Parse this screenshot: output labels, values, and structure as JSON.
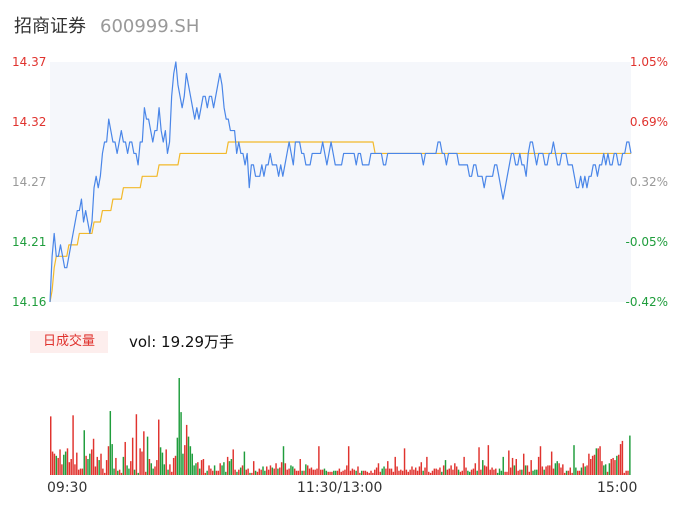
{
  "header": {
    "name": "招商证券",
    "code": "600999.SH"
  },
  "colors": {
    "up": "#e0332e",
    "down": "#1f9d3c",
    "neutral": "#999999",
    "price_line": "#4a86e8",
    "avg_line": "#f2b92b",
    "area": "#f5f7fb"
  },
  "volume": {
    "badge": "日成交量",
    "label": "vol: 19.29万手"
  },
  "chart_data": {
    "type": "line",
    "x_ticks": [
      "09:30",
      "11:30/13:00",
      "15:00"
    ],
    "y_left_ticks": [
      "14.37",
      "14.32",
      "14.27",
      "14.21",
      "14.16"
    ],
    "y_right_ticks": [
      "1.05%",
      "0.69%",
      "0.32%",
      "-0.05%",
      "-0.42%"
    ],
    "ylim": [
      14.16,
      14.37
    ],
    "price_series": [
      14.16,
      14.2,
      14.22,
      14.2,
      14.2,
      14.21,
      14.2,
      14.19,
      14.19,
      14.2,
      14.21,
      14.22,
      14.23,
      14.24,
      14.24,
      14.25,
      14.23,
      14.24,
      14.23,
      14.22,
      14.23,
      14.26,
      14.27,
      14.26,
      14.27,
      14.29,
      14.3,
      14.3,
      14.32,
      14.31,
      14.3,
      14.3,
      14.29,
      14.3,
      14.31,
      14.3,
      14.3,
      14.29,
      14.3,
      14.3,
      14.29,
      14.29,
      14.28,
      14.3,
      14.3,
      14.33,
      14.32,
      14.32,
      14.31,
      14.3,
      14.31,
      14.31,
      14.33,
      14.31,
      14.3,
      14.31,
      14.29,
      14.3,
      14.34,
      14.36,
      14.37,
      14.35,
      14.34,
      14.33,
      14.34,
      14.36,
      14.35,
      14.34,
      14.33,
      14.32,
      14.33,
      14.32,
      14.33,
      14.34,
      14.34,
      14.33,
      14.34,
      14.34,
      14.33,
      14.34,
      14.35,
      14.36,
      14.35,
      14.33,
      14.32,
      14.32,
      14.31,
      14.31,
      14.31,
      14.29,
      14.3,
      14.29,
      14.29,
      14.28,
      14.29,
      14.26,
      14.28,
      14.28,
      14.27,
      14.27,
      14.27,
      14.28,
      14.27,
      14.28,
      14.28,
      14.29,
      14.28,
      14.28,
      14.28,
      14.27,
      14.28,
      14.27,
      14.28,
      14.29,
      14.3,
      14.29,
      14.28,
      14.3,
      14.3,
      14.3,
      14.29,
      14.29,
      14.28,
      14.28,
      14.28,
      14.29,
      14.29,
      14.29,
      14.29,
      14.29,
      14.3,
      14.29,
      14.28,
      14.29,
      14.3,
      14.29,
      14.28,
      14.28,
      14.28,
      14.28,
      14.29,
      14.29,
      14.29,
      14.29,
      14.29,
      14.29,
      14.28,
      14.29,
      14.29,
      14.28,
      14.28,
      14.28,
      14.28,
      14.29,
      14.29,
      14.29,
      14.29,
      14.29,
      14.29,
      14.28,
      14.28,
      14.29,
      14.29,
      14.29,
      14.29,
      14.29,
      14.29,
      14.29,
      14.29,
      14.29,
      14.29,
      14.29,
      14.29,
      14.29,
      14.29,
      14.29,
      14.29,
      14.29,
      14.28,
      14.29,
      14.29,
      14.29,
      14.29,
      14.29,
      14.29,
      14.3,
      14.3,
      14.29,
      14.29,
      14.28,
      14.29,
      14.29,
      14.29,
      14.29,
      14.29,
      14.28,
      14.28,
      14.28,
      14.28,
      14.28,
      14.27,
      14.27,
      14.28,
      14.28,
      14.27,
      14.27,
      14.27,
      14.26,
      14.27,
      14.27,
      14.27,
      14.27,
      14.28,
      14.28,
      14.27,
      14.26,
      14.25,
      14.26,
      14.27,
      14.28,
      14.29,
      14.29,
      14.28,
      14.28,
      14.29,
      14.28,
      14.28,
      14.27,
      14.29,
      14.3,
      14.3,
      14.29,
      14.28,
      14.29,
      14.29,
      14.29,
      14.28,
      14.28,
      14.29,
      14.29,
      14.3,
      14.29,
      14.28,
      14.28,
      14.29,
      14.29,
      14.29,
      14.28,
      14.28,
      14.28,
      14.27,
      14.26,
      14.26,
      14.27,
      14.26,
      14.27,
      14.26,
      14.27,
      14.27,
      14.28,
      14.28,
      14.27,
      14.28,
      14.28,
      14.29,
      14.28,
      14.29,
      14.28,
      14.28,
      14.29,
      14.29,
      14.28,
      14.28,
      14.29,
      14.29,
      14.3,
      14.3,
      14.29
    ],
    "avg_series": [
      14.16,
      14.17,
      14.19,
      14.2,
      14.2,
      14.2,
      14.2,
      14.2,
      14.2,
      14.21,
      14.21,
      14.21,
      14.21,
      14.21,
      14.22,
      14.22,
      14.22,
      14.22,
      14.22,
      14.22,
      14.22,
      14.23,
      14.23,
      14.23,
      14.23,
      14.24,
      14.24,
      14.24,
      14.24,
      14.24,
      14.25,
      14.25,
      14.25,
      14.25,
      14.25,
      14.26,
      14.26,
      14.26,
      14.26,
      14.26,
      14.26,
      14.26,
      14.26,
      14.26,
      14.27,
      14.27,
      14.27,
      14.27,
      14.27,
      14.27,
      14.27,
      14.27,
      14.28,
      14.28,
      14.28,
      14.28,
      14.28,
      14.28,
      14.28,
      14.28,
      14.28,
      14.28,
      14.29,
      14.29,
      14.29,
      14.29,
      14.29,
      14.29,
      14.29,
      14.29,
      14.29,
      14.29,
      14.29,
      14.29,
      14.29,
      14.29,
      14.29,
      14.29,
      14.29,
      14.29,
      14.29,
      14.29,
      14.29,
      14.29,
      14.29,
      14.3,
      14.3,
      14.3,
      14.3,
      14.3,
      14.3,
      14.3,
      14.3,
      14.3,
      14.3,
      14.3,
      14.3,
      14.3,
      14.3,
      14.3,
      14.3,
      14.3,
      14.3,
      14.3,
      14.3,
      14.3,
      14.3,
      14.3,
      14.3,
      14.3,
      14.3,
      14.3,
      14.3,
      14.3,
      14.3,
      14.3,
      14.3,
      14.3,
      14.3,
      14.3,
      14.3,
      14.3,
      14.3,
      14.3,
      14.3,
      14.3,
      14.3,
      14.3,
      14.3,
      14.3,
      14.3,
      14.3,
      14.3,
      14.3,
      14.3,
      14.3,
      14.3,
      14.3,
      14.3,
      14.3,
      14.3,
      14.3,
      14.3,
      14.3,
      14.3,
      14.3,
      14.3,
      14.3,
      14.3,
      14.3,
      14.3,
      14.3,
      14.3,
      14.3,
      14.3,
      14.29,
      14.29,
      14.29,
      14.29,
      14.29,
      14.29,
      14.29,
      14.29,
      14.29,
      14.29,
      14.29,
      14.29,
      14.29,
      14.29,
      14.29,
      14.29,
      14.29,
      14.29,
      14.29,
      14.29,
      14.29,
      14.29,
      14.29,
      14.29,
      14.29,
      14.29,
      14.29,
      14.29,
      14.29,
      14.29,
      14.29,
      14.29,
      14.29,
      14.29,
      14.29,
      14.29,
      14.29,
      14.29,
      14.29,
      14.29,
      14.29,
      14.29,
      14.29,
      14.29,
      14.29,
      14.29,
      14.29,
      14.29,
      14.29,
      14.29,
      14.29,
      14.29,
      14.29,
      14.29,
      14.29,
      14.29,
      14.29,
      14.29,
      14.29,
      14.29,
      14.29,
      14.29,
      14.29,
      14.29,
      14.29,
      14.29,
      14.29,
      14.29,
      14.29,
      14.29,
      14.29,
      14.29,
      14.29,
      14.29,
      14.29,
      14.29,
      14.29,
      14.29,
      14.29,
      14.29,
      14.29,
      14.29,
      14.29,
      14.29,
      14.29,
      14.29,
      14.29,
      14.29,
      14.29,
      14.29,
      14.29,
      14.29,
      14.29,
      14.29,
      14.29,
      14.29,
      14.29,
      14.29,
      14.29,
      14.29,
      14.29,
      14.29,
      14.29,
      14.29,
      14.29,
      14.29,
      14.29,
      14.29,
      14.29,
      14.29,
      14.29,
      14.29,
      14.29,
      14.29,
      14.29,
      14.29,
      14.29,
      14.29,
      14.29,
      14.29,
      14.29,
      14.29,
      14.29
    ],
    "volume_series": [
      55,
      22,
      20,
      18,
      16,
      24,
      10,
      19,
      22,
      25,
      12,
      15,
      56,
      10,
      21,
      5,
      6,
      6,
      42,
      18,
      15,
      20,
      24,
      34,
      8,
      17,
      14,
      20,
      6,
      2,
      14,
      27,
      60,
      29,
      6,
      16,
      4,
      5,
      2,
      17,
      31,
      9,
      6,
      13,
      35,
      5,
      57,
      2,
      25,
      22,
      41,
      3,
      36,
      15,
      11,
      6,
      8,
      14,
      52,
      26,
      21,
      10,
      24,
      5,
      10,
      3,
      16,
      18,
      35,
      91,
      59,
      20,
      28,
      47,
      36,
      27,
      20,
      9,
      11,
      12,
      6,
      14,
      15,
      2,
      4,
      9,
      6,
      4,
      9,
      4,
      4,
      11,
      9,
      12,
      3,
      17,
      13,
      15,
      24,
      5,
      3,
      5,
      7,
      9,
      22,
      5,
      6,
      2,
      2,
      13,
      4,
      3,
      6,
      5,
      8,
      4,
      8,
      5,
      9,
      7,
      6,
      11,
      6,
      7,
      12,
      27,
      11,
      5,
      6,
      9,
      8,
      6,
      4,
      4,
      15,
      4,
      4,
      10,
      9,
      6,
      7,
      5,
      5,
      6,
      27,
      5,
      5,
      6,
      4,
      3,
      3,
      3,
      4,
      4,
      4,
      6,
      3,
      4,
      5,
      9,
      27,
      4,
      6,
      5,
      4,
      8,
      2,
      4,
      4,
      4,
      3,
      2,
      4,
      2,
      5,
      7,
      11,
      3,
      6,
      8,
      6,
      13,
      6,
      6,
      3,
      17,
      8,
      4,
      5,
      4,
      25,
      5,
      3,
      5,
      8,
      5,
      7,
      4,
      8,
      12,
      4,
      7,
      17,
      3,
      2,
      4,
      6,
      6,
      5,
      7,
      3,
      9,
      14,
      5,
      6,
      9,
      5,
      11,
      8,
      5,
      3,
      4,
      17,
      7,
      4,
      3,
      5,
      6,
      11,
      4,
      26,
      5,
      14,
      9,
      8,
      28,
      5,
      7,
      5,
      6,
      2,
      6,
      4,
      17,
      3,
      3,
      23,
      7,
      16,
      9,
      15,
      4,
      5,
      5,
      20,
      9,
      9,
      3,
      14,
      4,
      5,
      5,
      17,
      27,
      8,
      5,
      8,
      9,
      9,
      22,
      6,
      11,
      13,
      11,
      7,
      10,
      2,
      4,
      4,
      7,
      2,
      28,
      7,
      4,
      4,
      7,
      11,
      8,
      9,
      20,
      15,
      18,
      19,
      25,
      25,
      27,
      13,
      9,
      10,
      3,
      11,
      15,
      16,
      14,
      18,
      19,
      29,
      32,
      2,
      4,
      4,
      37
    ],
    "volume_unit": "万手"
  }
}
